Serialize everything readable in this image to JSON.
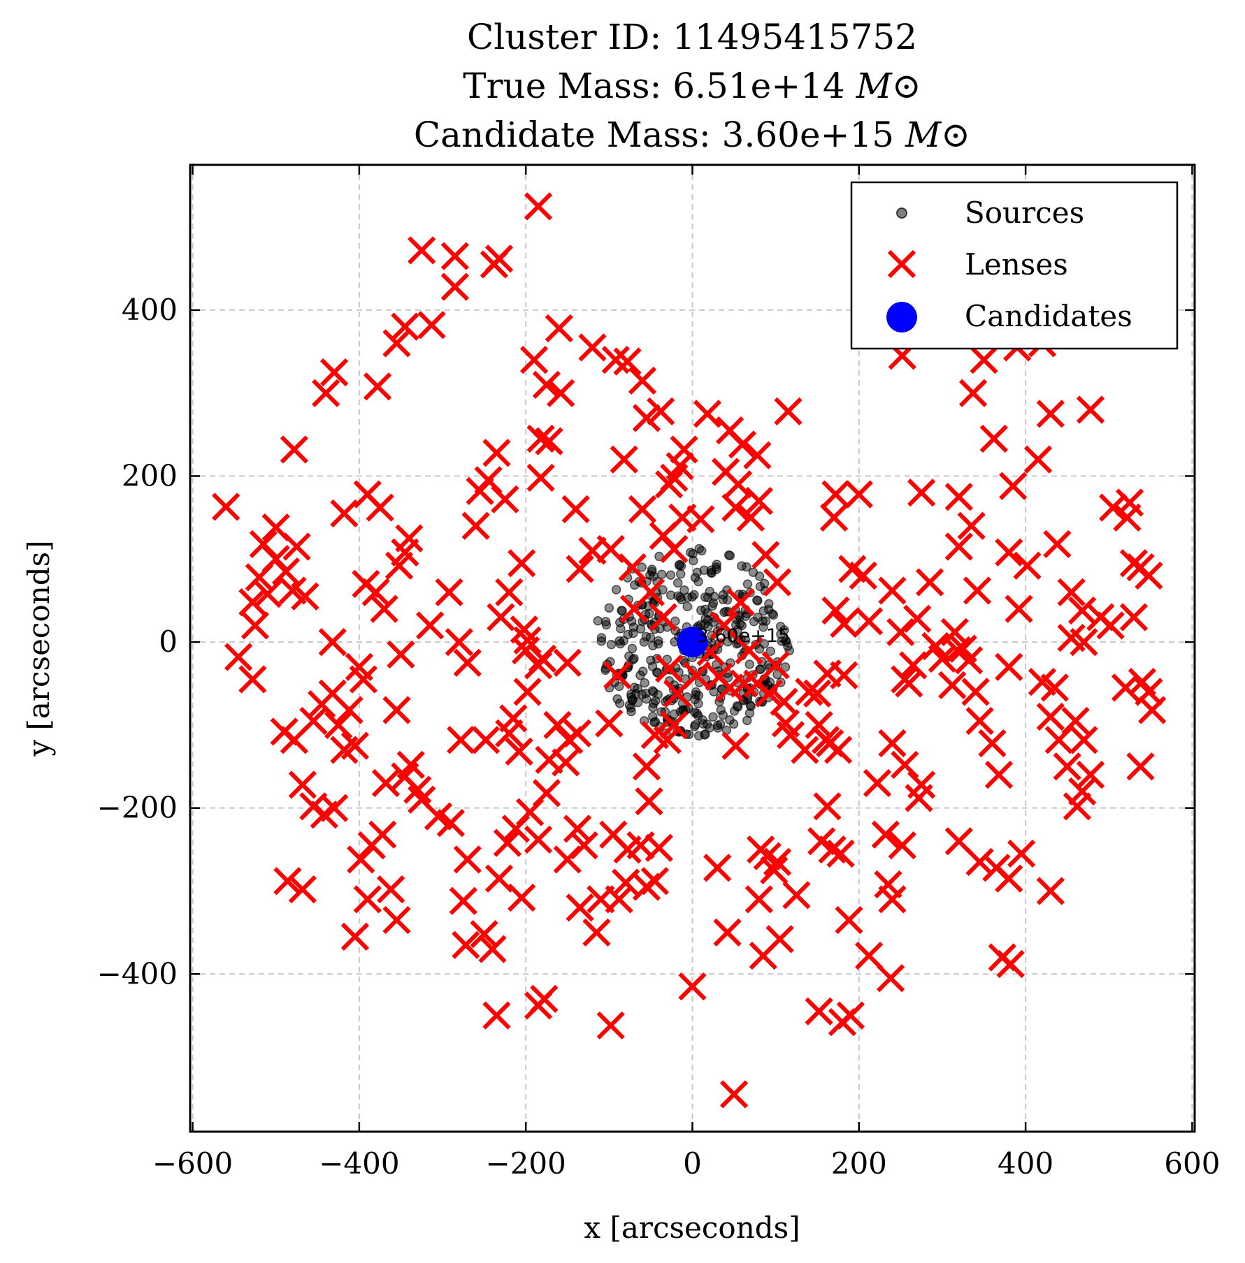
{
  "chart_data": {
    "type": "scatter",
    "title_lines": [
      {
        "text": "Cluster ID: 11495415752",
        "unit": ""
      },
      {
        "text": "True Mass: 6.51e+14 ",
        "unit": "M⊙"
      },
      {
        "text": "Candidate Mass: 3.60e+15 ",
        "unit": "M⊙"
      }
    ],
    "xlabel": "x [arcseconds]",
    "ylabel": "y [arcseconds]",
    "xlim": [
      -603,
      603
    ],
    "ylim": [
      -590,
      575
    ],
    "xticks": [
      -600,
      -400,
      -200,
      0,
      200,
      400,
      600
    ],
    "yticks": [
      -400,
      -200,
      0,
      200,
      400
    ],
    "grid": true,
    "legend_position": "upper right",
    "colors": {
      "sources": "#000000",
      "lenses": "#ff0000",
      "candidates": "#0000ff"
    },
    "legend": [
      "Sources",
      "Lenses",
      "Candidates"
    ],
    "annotation": {
      "text": "3.60e+15",
      "x": 0,
      "y": 0
    },
    "sources_cluster": {
      "center": [
        0,
        0
      ],
      "radius": 115,
      "count": 400
    },
    "series": [
      {
        "name": "Lenses",
        "marker": "x",
        "points": [
          [
            -185,
            525
          ],
          [
            -325,
            472
          ],
          [
            -285,
            465
          ],
          [
            -232,
            462
          ],
          [
            -238,
            455
          ],
          [
            -285,
            428
          ],
          [
            -313,
            382
          ],
          [
            -345,
            380
          ],
          [
            -355,
            360
          ],
          [
            -378,
            308
          ],
          [
            -430,
            325
          ],
          [
            -440,
            300
          ],
          [
            -478,
            232
          ],
          [
            -560,
            163
          ],
          [
            -500,
            138
          ],
          [
            -515,
            118
          ],
          [
            -500,
            100
          ],
          [
            -488,
            85
          ],
          [
            -520,
            78
          ],
          [
            -510,
            58
          ],
          [
            -480,
            62
          ],
          [
            -475,
            115
          ],
          [
            -465,
            55
          ],
          [
            -528,
            48
          ],
          [
            -525,
            20
          ],
          [
            -545,
            -18
          ],
          [
            -528,
            -45
          ],
          [
            -490,
            -108
          ],
          [
            -478,
            -118
          ],
          [
            -455,
            -95
          ],
          [
            -445,
            -75
          ],
          [
            -432,
            -62
          ],
          [
            -432,
            0
          ],
          [
            -425,
            -100
          ],
          [
            -418,
            -130
          ],
          [
            -405,
            -125
          ],
          [
            -400,
            -30
          ],
          [
            -395,
            -45
          ],
          [
            -412,
            -82
          ],
          [
            -468,
            -172
          ],
          [
            -455,
            -198
          ],
          [
            -442,
            -208
          ],
          [
            -430,
            -200
          ],
          [
            -418,
            155
          ],
          [
            -390,
            178
          ],
          [
            -375,
            162
          ],
          [
            -392,
            70
          ],
          [
            -380,
            60
          ],
          [
            -370,
            40
          ],
          [
            -352,
            92
          ],
          [
            -340,
            125
          ],
          [
            -345,
            108
          ],
          [
            -350,
            -15
          ],
          [
            -355,
            -82
          ],
          [
            -315,
            20
          ],
          [
            -292,
            60
          ],
          [
            -280,
            0
          ],
          [
            -270,
            -25
          ],
          [
            -260,
            140
          ],
          [
            -255,
            182
          ],
          [
            -245,
            195
          ],
          [
            -235,
            228
          ],
          [
            -225,
            172
          ],
          [
            -205,
            95
          ],
          [
            -220,
            60
          ],
          [
            -230,
            30
          ],
          [
            -198,
            2
          ],
          [
            -202,
            15
          ],
          [
            -185,
            -28
          ],
          [
            -198,
            -60
          ],
          [
            -215,
            -92
          ],
          [
            -220,
            -110
          ],
          [
            -208,
            -132
          ],
          [
            -248,
            -118
          ],
          [
            -278,
            -118
          ],
          [
            -290,
            -218
          ],
          [
            -305,
            -210
          ],
          [
            -325,
            -190
          ],
          [
            -330,
            -178
          ],
          [
            -345,
            -162
          ],
          [
            -338,
            -148
          ],
          [
            -368,
            -170
          ],
          [
            -385,
            -245
          ],
          [
            -398,
            -262
          ],
          [
            -372,
            -232
          ],
          [
            -362,
            -298
          ],
          [
            -390,
            -310
          ],
          [
            -405,
            -355
          ],
          [
            -355,
            -335
          ],
          [
            -468,
            -298
          ],
          [
            -486,
            -288
          ],
          [
            -270,
            -262
          ],
          [
            -275,
            -312
          ],
          [
            -272,
            -365
          ],
          [
            -250,
            -352
          ],
          [
            -240,
            -370
          ],
          [
            -232,
            -285
          ],
          [
            -205,
            -308
          ],
          [
            -222,
            -242
          ],
          [
            -212,
            -225
          ],
          [
            -195,
            -205
          ],
          [
            -185,
            -238
          ],
          [
            -175,
            -182
          ],
          [
            -150,
            -262
          ],
          [
            -138,
            -225
          ],
          [
            -130,
            -245
          ],
          [
            -135,
            -320
          ],
          [
            -115,
            -350
          ],
          [
            -110,
            -310
          ],
          [
            -88,
            -310
          ],
          [
            -80,
            -290
          ],
          [
            -95,
            -232
          ],
          [
            -78,
            -250
          ],
          [
            -62,
            -245
          ],
          [
            -55,
            -295
          ],
          [
            -45,
            -288
          ],
          [
            -40,
            -248
          ],
          [
            -52,
            -192
          ],
          [
            -55,
            -150
          ],
          [
            -45,
            -112
          ],
          [
            -30,
            -118
          ],
          [
            -22,
            -100
          ],
          [
            -235,
            -450
          ],
          [
            -185,
            -438
          ],
          [
            -178,
            -430
          ],
          [
            -98,
            -462
          ],
          [
            -190,
            340
          ],
          [
            -175,
            310
          ],
          [
            -182,
            245
          ],
          [
            -172,
            242
          ],
          [
            -182,
            198
          ],
          [
            -158,
            300
          ],
          [
            -160,
            378
          ],
          [
            -120,
            355
          ],
          [
            -92,
            340
          ],
          [
            -78,
            338
          ],
          [
            -60,
            315
          ],
          [
            -82,
            220
          ],
          [
            -55,
            270
          ],
          [
            -38,
            278
          ],
          [
            -22,
            198
          ],
          [
            -15,
            212
          ],
          [
            -28,
            190
          ],
          [
            -10,
            232
          ],
          [
            18,
            275
          ],
          [
            45,
            255
          ],
          [
            60,
            238
          ],
          [
            78,
            225
          ],
          [
            80,
            170
          ],
          [
            40,
            205
          ],
          [
            55,
            190
          ],
          [
            52,
            162
          ],
          [
            70,
            150
          ],
          [
            115,
            278
          ],
          [
            -140,
            160
          ],
          [
            -135,
            88
          ],
          [
            -120,
            110
          ],
          [
            -98,
            112
          ],
          [
            -72,
            90
          ],
          [
            -60,
            160
          ],
          [
            -35,
            128
          ],
          [
            -22,
            112
          ],
          [
            -12,
            150
          ],
          [
            10,
            148
          ],
          [
            -200,
            -10
          ],
          [
            -180,
            -20
          ],
          [
            -150,
            -25
          ],
          [
            -138,
            -110
          ],
          [
            -148,
            -118
          ],
          [
            -162,
            -100
          ],
          [
            -172,
            -142
          ],
          [
            -152,
            -145
          ],
          [
            -100,
            -98
          ],
          [
            -90,
            -40
          ],
          [
            -70,
            40
          ],
          [
            -50,
            60
          ],
          [
            -35,
            30
          ],
          [
            -28,
            -32
          ],
          [
            -18,
            -62
          ],
          [
            5,
            -40
          ],
          [
            22,
            -12
          ],
          [
            38,
            20
          ],
          [
            58,
            48
          ],
          [
            68,
            -10
          ],
          [
            78,
            -50
          ],
          [
            92,
            -62
          ],
          [
            100,
            -28
          ],
          [
            102,
            72
          ],
          [
            88,
            105
          ],
          [
            110,
            -72
          ],
          [
            118,
            -112
          ],
          [
            112,
            -98
          ],
          [
            135,
            -130
          ],
          [
            152,
            -100
          ],
          [
            150,
            -62
          ],
          [
            162,
            -38
          ],
          [
            172,
            38
          ],
          [
            182,
            22
          ],
          [
            192,
            88
          ],
          [
            205,
            80
          ],
          [
            212,
            25
          ],
          [
            182,
            -40
          ],
          [
            160,
            -118
          ],
          [
            175,
            -130
          ],
          [
            165,
            -122
          ],
          [
            170,
            150
          ],
          [
            200,
            178
          ],
          [
            172,
            178
          ],
          [
            240,
            -122
          ],
          [
            255,
            -45
          ],
          [
            265,
            -28
          ],
          [
            250,
            12
          ],
          [
            270,
            28
          ],
          [
            292,
            -5
          ],
          [
            300,
            -20
          ],
          [
            312,
            -52
          ],
          [
            325,
            -8
          ],
          [
            315,
            12
          ],
          [
            332,
            -22
          ],
          [
            318,
            -10
          ],
          [
            340,
            -60
          ],
          [
            345,
            -95
          ],
          [
            360,
            -122
          ],
          [
            368,
            -160
          ],
          [
            380,
            -30
          ],
          [
            392,
            40
          ],
          [
            402,
            92
          ],
          [
            420,
            -48
          ],
          [
            435,
            -55
          ],
          [
            430,
            -90
          ],
          [
            440,
            -118
          ],
          [
            450,
            -150
          ],
          [
            470,
            -118
          ],
          [
            460,
            -95
          ],
          [
            478,
            -160
          ],
          [
            468,
            -180
          ],
          [
            462,
            -198
          ],
          [
            455,
            5
          ],
          [
            470,
            0
          ],
          [
            490,
            30
          ],
          [
            502,
            20
          ],
          [
            522,
            150
          ],
          [
            505,
            162
          ],
          [
            525,
            168
          ],
          [
            538,
            90
          ],
          [
            548,
            80
          ],
          [
            530,
            95
          ],
          [
            530,
            30
          ],
          [
            520,
            -55
          ],
          [
            540,
            -48
          ],
          [
            548,
            -60
          ],
          [
            552,
            -82
          ],
          [
            538,
            -150
          ],
          [
            438,
            118
          ],
          [
            455,
            60
          ],
          [
            468,
            38
          ],
          [
            380,
            108
          ],
          [
            362,
            245
          ],
          [
            385,
            188
          ],
          [
            350,
            340
          ],
          [
            390,
            355
          ],
          [
            420,
            360
          ],
          [
            415,
            220
          ],
          [
            430,
            275
          ],
          [
            478,
            280
          ],
          [
            337,
            300
          ],
          [
            252,
            345
          ],
          [
            320,
            175
          ],
          [
            335,
            140
          ],
          [
            320,
            115
          ],
          [
            342,
            62
          ],
          [
            285,
            72
          ],
          [
            240,
            62
          ],
          [
            275,
            180
          ],
          [
            260,
            -50
          ],
          [
            320,
            -240
          ],
          [
            345,
            -265
          ],
          [
            365,
            -272
          ],
          [
            380,
            -285
          ],
          [
            395,
            -255
          ],
          [
            430,
            -300
          ],
          [
            372,
            -380
          ],
          [
            382,
            -388
          ],
          [
            232,
            -232
          ],
          [
            222,
            -170
          ],
          [
            240,
            -310
          ],
          [
            235,
            -292
          ],
          [
            238,
            -405
          ],
          [
            212,
            -378
          ],
          [
            190,
            -450
          ],
          [
            180,
            -458
          ],
          [
            152,
            -445
          ],
          [
            168,
            -250
          ],
          [
            178,
            -255
          ],
          [
            155,
            -240
          ],
          [
            162,
            -198
          ],
          [
            188,
            -335
          ],
          [
            252,
            -245
          ],
          [
            272,
            -188
          ],
          [
            275,
            -172
          ],
          [
            255,
            -148
          ],
          [
            140,
            -60
          ],
          [
            125,
            -305
          ],
          [
            102,
            -265
          ],
          [
            82,
            -250
          ],
          [
            90,
            -258
          ],
          [
            98,
            -275
          ],
          [
            105,
            -358
          ],
          [
            85,
            -378
          ],
          [
            80,
            -310
          ],
          [
            42,
            -350
          ],
          [
            30,
            -272
          ],
          [
            0,
            -415
          ],
          [
            50,
            -545
          ],
          [
            52,
            -125
          ],
          [
            32,
            -42
          ],
          [
            45,
            -55
          ],
          [
            62,
            -50
          ]
        ]
      },
      {
        "name": "Candidates",
        "marker": "o",
        "points": [
          [
            0,
            0
          ]
        ]
      }
    ]
  }
}
